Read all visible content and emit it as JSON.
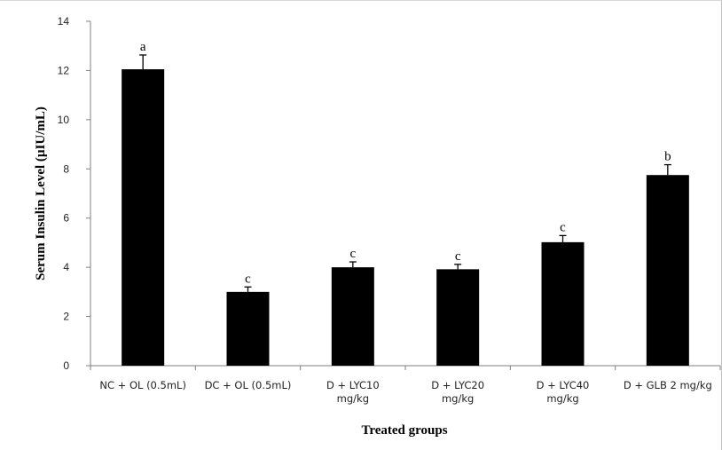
{
  "chart_data": {
    "type": "bar",
    "categories": [
      [
        "NC + OL (0.5mL)"
      ],
      [
        "DC + OL (0.5mL)"
      ],
      [
        "D + LYC10",
        "mg/kg"
      ],
      [
        "D + LYC20",
        "mg/kg"
      ],
      [
        "D + LYC40",
        "mg/kg"
      ],
      [
        "D + GLB 2 mg/kg"
      ]
    ],
    "values": [
      12.05,
      3.0,
      4.0,
      3.92,
      5.02,
      7.75
    ],
    "errors": [
      0.58,
      0.2,
      0.22,
      0.2,
      0.27,
      0.42
    ],
    "significance": [
      "a",
      "c",
      "c",
      "c",
      "c",
      "b"
    ],
    "title": "",
    "xlabel": "Treated groups",
    "ylabel": "Serum Insulin Level (µIU/mL)",
    "ylim": [
      0,
      14
    ],
    "yticks": [
      0,
      2,
      4,
      6,
      8,
      10,
      12,
      14
    ],
    "bar_color": "#000000",
    "grid": false,
    "legend": "none"
  }
}
